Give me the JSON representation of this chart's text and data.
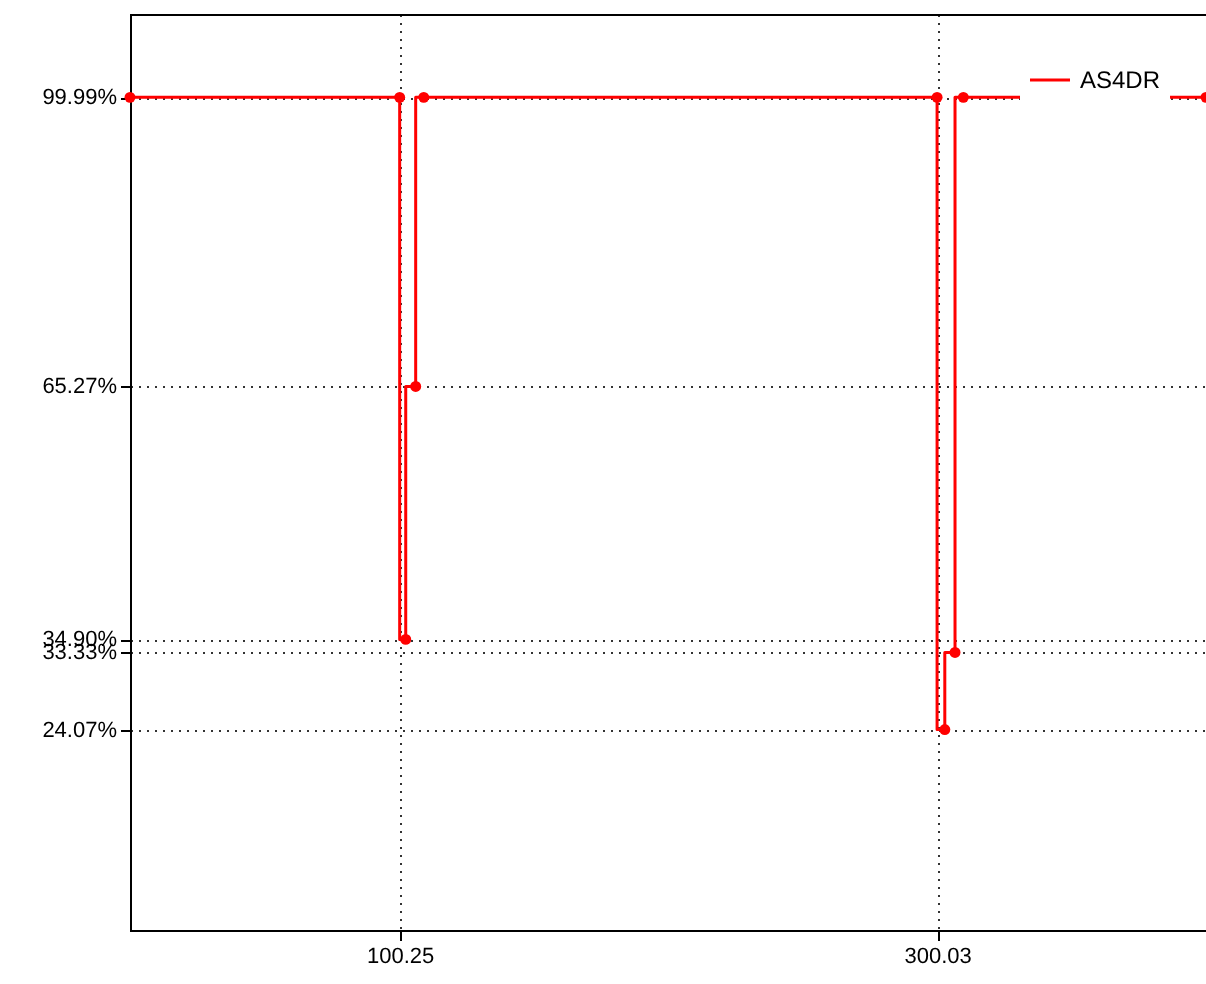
{
  "chart_data": {
    "type": "step",
    "x": [
      0,
      100.25,
      102.5,
      106.2,
      109.2,
      300.03,
      302.9,
      306.7,
      309.8,
      400
    ],
    "series": [
      {
        "name": "AS4DR",
        "color": "#ff0000",
        "values": [
          99.99,
          99.99,
          34.9,
          65.27,
          99.99,
          99.99,
          24.07,
          33.33,
          99.99,
          99.99
        ]
      }
    ],
    "xlim": [
      0,
      400
    ],
    "xticks": [
      100.25,
      300.03
    ],
    "ylim": [
      0,
      110
    ],
    "yticks": [
      {
        "value": 24.07,
        "label": "24.07%"
      },
      {
        "value": 33.33,
        "label": "33.33%"
      },
      {
        "value": 34.9,
        "label": "34.90%"
      },
      {
        "value": 65.27,
        "label": "65.27%"
      },
      {
        "value": 99.99,
        "label": "99.99%"
      }
    ],
    "grid": true,
    "legend": "top right",
    "marker": "circle",
    "line_style": "solid"
  }
}
